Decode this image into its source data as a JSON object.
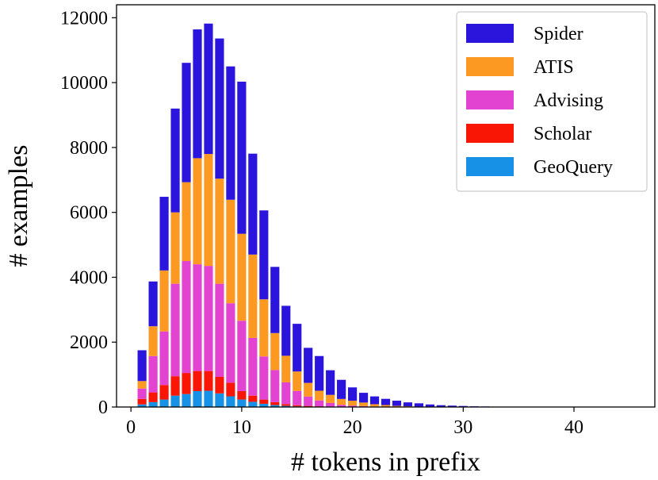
{
  "chart_data": {
    "type": "bar",
    "stacked": true,
    "xlabel": "# tokens in prefix",
    "ylabel": "# examples",
    "xlim": [
      -1.3,
      47.3
    ],
    "ylim": [
      0,
      12400
    ],
    "xticks": [
      0,
      10,
      20,
      30,
      40
    ],
    "yticks": [
      0,
      2000,
      4000,
      6000,
      8000,
      10000,
      12000
    ],
    "legend_position": "top-right",
    "x": [
      1,
      2,
      3,
      4,
      5,
      6,
      7,
      8,
      9,
      10,
      11,
      12,
      13,
      14,
      15,
      16,
      17,
      18,
      19,
      20,
      21,
      22,
      23,
      24,
      25,
      26,
      27,
      28,
      29,
      30,
      31,
      32,
      33,
      34,
      35,
      36,
      37,
      38,
      39,
      40,
      41,
      42,
      43,
      44,
      45,
      46
    ],
    "series": [
      {
        "name": "GeoQuery",
        "color": "#1691e6",
        "values": [
          80,
          150,
          230,
          350,
          400,
          490,
          500,
          420,
          330,
          230,
          160,
          100,
          60,
          35,
          20,
          12,
          8,
          5,
          3,
          2,
          1,
          1,
          1,
          0,
          0,
          0,
          0,
          0,
          0,
          0,
          0,
          0,
          0,
          0,
          0,
          0,
          0,
          0,
          0,
          0,
          0,
          0,
          0,
          0,
          0,
          0
        ]
      },
      {
        "name": "Scholar",
        "color": "#fa1605",
        "values": [
          170,
          300,
          450,
          600,
          650,
          620,
          610,
          510,
          420,
          260,
          190,
          130,
          90,
          55,
          35,
          22,
          14,
          9,
          5,
          3,
          2,
          1,
          1,
          0,
          0,
          0,
          0,
          0,
          0,
          0,
          0,
          0,
          0,
          0,
          0,
          0,
          0,
          0,
          0,
          0,
          0,
          0,
          0,
          0,
          0,
          0
        ]
      },
      {
        "name": "Advising",
        "color": "#e244d1",
        "values": [
          320,
          1120,
          1650,
          2850,
          3450,
          3290,
          3240,
          2870,
          2450,
          2170,
          1780,
          1330,
          990,
          670,
          440,
          290,
          180,
          110,
          60,
          40,
          25,
          15,
          10,
          5,
          3,
          2,
          1,
          1,
          0,
          0,
          0,
          0,
          0,
          0,
          0,
          0,
          0,
          0,
          0,
          0,
          0,
          0,
          0,
          0,
          0,
          0
        ]
      },
      {
        "name": "ATIS",
        "color": "#fc9923",
        "values": [
          230,
          920,
          1880,
          2200,
          2430,
          3270,
          3450,
          3240,
          3190,
          2680,
          2570,
          1760,
          1140,
          820,
          600,
          420,
          300,
          250,
          180,
          150,
          110,
          70,
          50,
          30,
          20,
          12,
          8,
          5,
          3,
          2,
          1,
          1,
          0,
          0,
          0,
          0,
          0,
          0,
          0,
          0,
          0,
          0,
          0,
          0,
          0,
          0
        ]
      },
      {
        "name": "Spider",
        "color": "#2b15dd",
        "values": [
          950,
          1380,
          2270,
          3200,
          3680,
          3970,
          4020,
          4320,
          4110,
          4690,
          3110,
          2740,
          2040,
          1540,
          1470,
          1080,
          1070,
          760,
          590,
          410,
          300,
          240,
          190,
          160,
          120,
          100,
          70,
          50,
          40,
          30,
          20,
          15,
          10,
          8,
          6,
          4,
          3,
          2,
          1,
          1,
          1,
          1,
          0,
          0,
          0,
          0
        ]
      }
    ],
    "legend_order": [
      "Spider",
      "ATIS",
      "Advising",
      "Scholar",
      "GeoQuery"
    ]
  }
}
